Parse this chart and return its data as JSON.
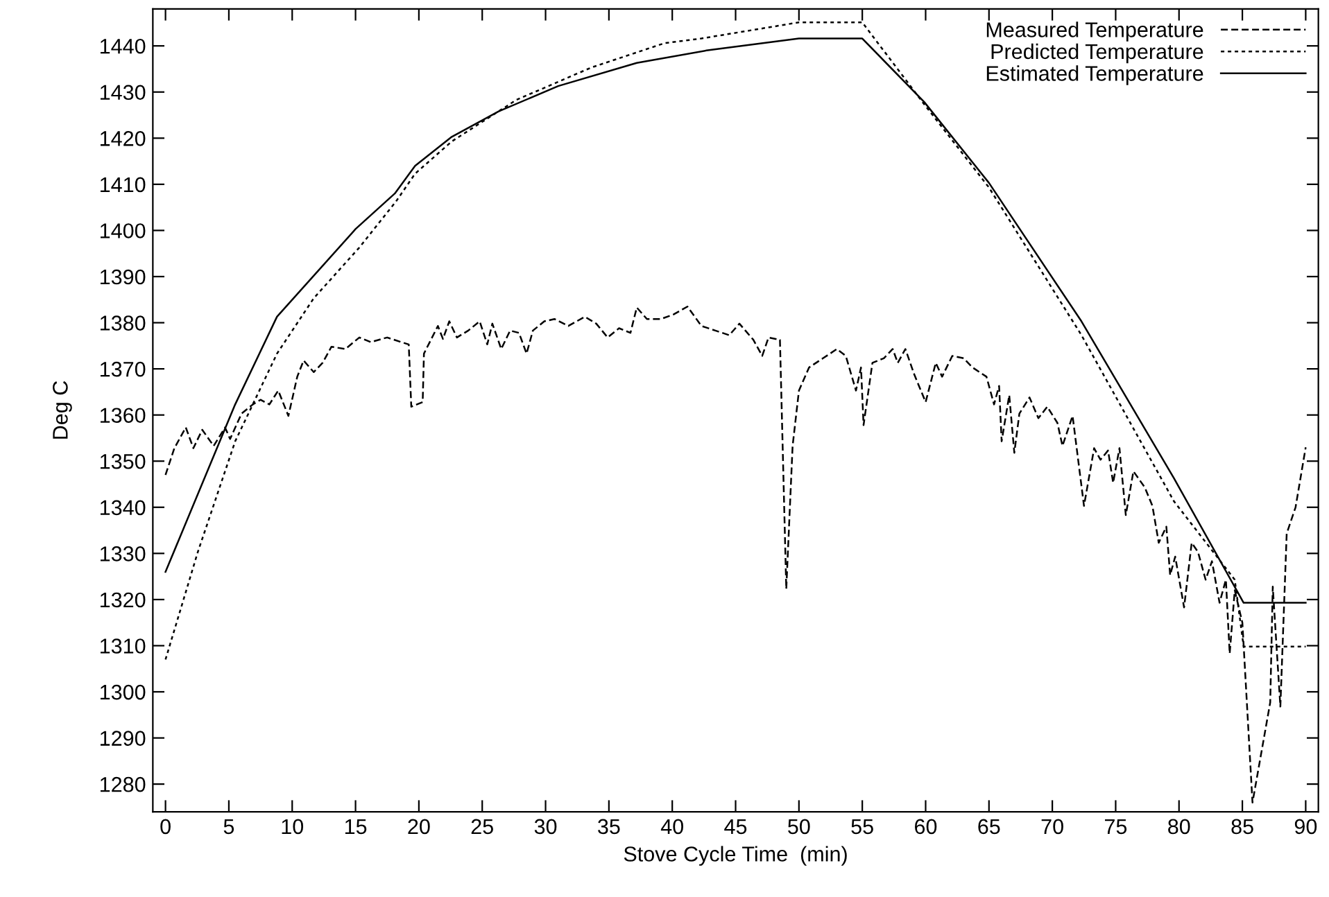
{
  "chart_data": {
    "type": "line",
    "xlabel": "Stove Cycle Time  (min)",
    "ylabel": "Deg C",
    "xlim": [
      -1,
      91
    ],
    "ylim": [
      1274,
      1448
    ],
    "xticks": [
      0,
      5,
      10,
      15,
      20,
      25,
      30,
      35,
      40,
      45,
      50,
      55,
      60,
      65,
      70,
      75,
      80,
      85,
      90
    ],
    "yticks": [
      1280,
      1290,
      1300,
      1310,
      1320,
      1330,
      1340,
      1350,
      1360,
      1370,
      1380,
      1390,
      1400,
      1410,
      1420,
      1430,
      1440
    ],
    "grid": false,
    "legend": "top right",
    "marker": "none",
    "series": [
      {
        "name": "Measured Temperature",
        "color": "#000000",
        "line_style": "dashed",
        "x": [
          0,
          0.7,
          1.6,
          2.2,
          2.9,
          3.8,
          4.7,
          5.1,
          6.0,
          6.9,
          7.5,
          8.2,
          8.9,
          9.7,
          10.4,
          10.9,
          11.7,
          12.4,
          13.1,
          14.2,
          15.3,
          16.2,
          17.5,
          18.6,
          19.2,
          19.4,
          20.3,
          20.4,
          21.5,
          21.9,
          22.4,
          23.0,
          23.9,
          24.8,
          25.4,
          25.8,
          26.5,
          27.2,
          27.9,
          28.5,
          29.0,
          29.9,
          30.7,
          31.8,
          33.1,
          34.0,
          34.9,
          35.8,
          36.7,
          37.2,
          38.0,
          39.1,
          40.1,
          41.2,
          42.3,
          43.4,
          44.5,
          45.3,
          46.4,
          47.1,
          47.6,
          48.5,
          49.0,
          49.5,
          50.0,
          50.8,
          51.9,
          53.0,
          53.7,
          54.5,
          54.9,
          55.1,
          55.8,
          56.7,
          57.4,
          57.8,
          58.4,
          59.1,
          60.0,
          60.8,
          61.3,
          62.1,
          63.0,
          63.7,
          64.8,
          65.4,
          65.8,
          66.0,
          66.6,
          67.0,
          67.4,
          68.2,
          68.9,
          69.6,
          70.4,
          70.8,
          71.6,
          72.5,
          73.3,
          73.8,
          74.4,
          74.8,
          75.3,
          75.8,
          76.4,
          77.3,
          77.9,
          78.4,
          79.0,
          79.3,
          79.7,
          80.4,
          81.0,
          81.5,
          82.1,
          82.6,
          83.2,
          83.7,
          84.0,
          84.4,
          85.0,
          85.8,
          87.2,
          87.4,
          88.0,
          88.5,
          89.2,
          90
        ],
        "values": [
          1347,
          1352.8,
          1357.3,
          1352.8,
          1356.8,
          1353.3,
          1357.3,
          1354.8,
          1360.3,
          1362.3,
          1363.3,
          1362.3,
          1365.3,
          1359.8,
          1368.3,
          1371.8,
          1369.3,
          1371.3,
          1374.8,
          1374.3,
          1376.8,
          1375.8,
          1376.8,
          1375.8,
          1375.3,
          1361.8,
          1362.8,
          1373.3,
          1379.3,
          1376.5,
          1380.3,
          1376.8,
          1378.3,
          1380.3,
          1375.3,
          1379.8,
          1374.3,
          1378.3,
          1377.8,
          1373.3,
          1378.3,
          1380.3,
          1380.8,
          1379.3,
          1381.3,
          1379.8,
          1376.8,
          1378.8,
          1377.8,
          1383.3,
          1380.8,
          1380.8,
          1381.8,
          1383.5,
          1379.3,
          1378.3,
          1377.3,
          1379.8,
          1376.3,
          1372.8,
          1376.8,
          1376.3,
          1322.3,
          1353.3,
          1365.3,
          1370.3,
          1372.3,
          1374.3,
          1372.8,
          1365.3,
          1370.3,
          1357.8,
          1371.3,
          1372.3,
          1374.3,
          1371.3,
          1374.3,
          1368.8,
          1362.8,
          1371.3,
          1368.3,
          1372.8,
          1372.3,
          1370.3,
          1368.3,
          1362.3,
          1366.3,
          1354.3,
          1364.3,
          1351.8,
          1360.3,
          1363.8,
          1359.3,
          1361.8,
          1358.3,
          1353.3,
          1359.8,
          1340.3,
          1352.8,
          1350.3,
          1352.3,
          1345.3,
          1352.8,
          1338.3,
          1347.8,
          1344.3,
          1340.3,
          1332.3,
          1335.8,
          1325.3,
          1329.3,
          1318.3,
          1332.3,
          1330.3,
          1324.3,
          1328.3,
          1319.3,
          1324.3,
          1308.3,
          1322,
          1315,
          1276,
          1297.7,
          1322.8,
          1296.8,
          1334.3,
          1340,
          1353
        ]
      },
      {
        "name": "Predicted Temperature",
        "color": "#000000",
        "line_style": "dotted",
        "x": [
          0,
          2.55,
          5.5,
          8.8,
          11.7,
          15.3,
          18.2,
          19.7,
          22.6,
          27.7,
          33.6,
          39.4,
          42.3,
          50,
          55,
          59.9,
          65,
          72.3,
          79.6,
          84.4,
          85.1,
          90
        ],
        "values": [
          1307,
          1330.3,
          1354.3,
          1373.3,
          1385.3,
          1396.3,
          1406.3,
          1412.3,
          1419.3,
          1428.3,
          1435.3,
          1440.6,
          1441.6,
          1445.1,
          1445.1,
          1427.3,
          1409.3,
          1377.3,
          1341.3,
          1324.3,
          1309.8,
          1309.8
        ]
      },
      {
        "name": "Estimated Temperature",
        "color": "#000000",
        "line_style": "solid",
        "x": [
          0,
          5.5,
          8.8,
          15,
          18.1,
          19.7,
          22.6,
          26.3,
          31,
          37.2,
          42.7,
          50,
          55,
          59.9,
          65,
          72.3,
          79.6,
          85.1,
          90
        ],
        "values": [
          1326,
          1362.3,
          1381.3,
          1400.3,
          1408,
          1414,
          1420.3,
          1425.8,
          1431.3,
          1436.3,
          1439,
          1441.6,
          1441.6,
          1427.8,
          1410.3,
          1380.3,
          1346.3,
          1319.3,
          1319.3
        ]
      }
    ]
  }
}
